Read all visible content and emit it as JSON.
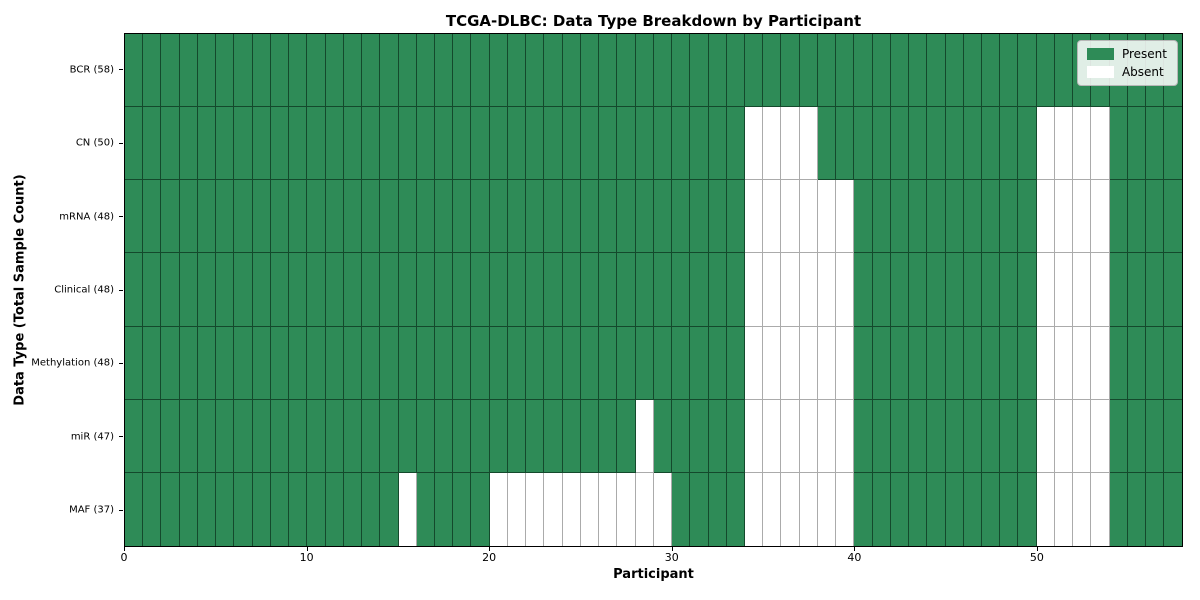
{
  "title": "TCGA-DLBC: Data Type Breakdown by Participant",
  "axes": {
    "x_label": "Participant",
    "y_label": "Data Type (Total Sample Count)",
    "x_ticks": [
      0,
      10,
      20,
      30,
      40,
      50
    ]
  },
  "legend": [
    {
      "label": "Present",
      "color": "#2e8b57"
    },
    {
      "label": "Absent",
      "color": "#ffffff"
    }
  ],
  "chart_data": {
    "type": "heatmap",
    "title": "TCGA-DLBC: Data Type Breakdown by Participant",
    "xlabel": "Participant",
    "ylabel": "Data Type (Total Sample Count)",
    "n_participants": 58,
    "x_ticks": [
      0,
      10,
      20,
      30,
      40,
      50
    ],
    "xlim": [
      0,
      58
    ],
    "grid": "cell-borders",
    "legend_position": "upper-right",
    "cell_states": {
      "present_value": 1,
      "absent_value": 0
    },
    "colors": {
      "present": "#2e8b57",
      "absent": "#ffffff"
    },
    "rows": [
      {
        "label": "BCR (58)",
        "data_type": "BCR",
        "total": 58,
        "absent": []
      },
      {
        "label": "CN (50)",
        "data_type": "CN",
        "total": 50,
        "absent": [
          34,
          35,
          36,
          37,
          50,
          51,
          52,
          53
        ]
      },
      {
        "label": "mRNA (48)",
        "data_type": "mRNA",
        "total": 48,
        "absent": [
          34,
          35,
          36,
          37,
          38,
          39,
          50,
          51,
          52,
          53
        ]
      },
      {
        "label": "Clinical (48)",
        "data_type": "Clinical",
        "total": 48,
        "absent": [
          34,
          35,
          36,
          37,
          38,
          39,
          50,
          51,
          52,
          53
        ]
      },
      {
        "label": "Methylation (48)",
        "data_type": "Methylation",
        "total": 48,
        "absent": [
          34,
          35,
          36,
          37,
          38,
          39,
          50,
          51,
          52,
          53
        ]
      },
      {
        "label": "miR (47)",
        "data_type": "miR",
        "total": 47,
        "absent": [
          28,
          34,
          35,
          36,
          37,
          38,
          39,
          50,
          51,
          52,
          53
        ]
      },
      {
        "label": "MAF (37)",
        "data_type": "MAF",
        "total": 37,
        "absent": [
          15,
          20,
          21,
          22,
          23,
          24,
          25,
          26,
          27,
          28,
          29,
          34,
          35,
          36,
          37,
          38,
          39,
          50,
          51,
          52,
          53
        ]
      }
    ]
  }
}
